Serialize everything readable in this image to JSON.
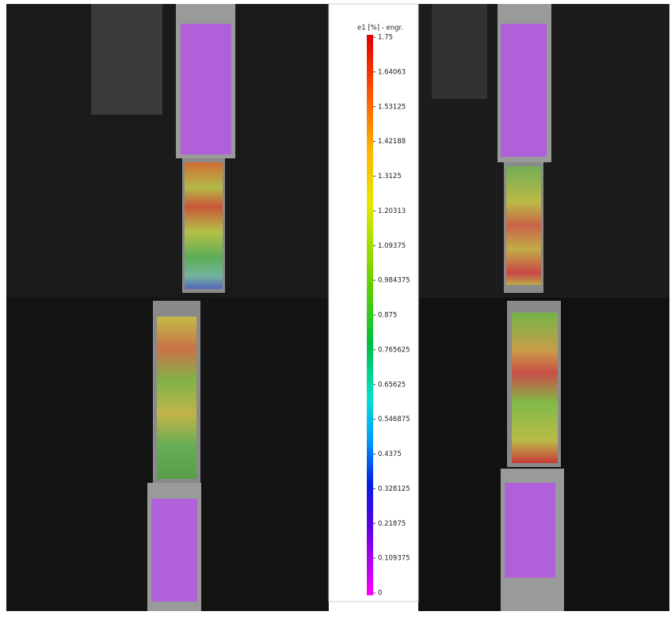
{
  "colorbar": {
    "title": "e1 [%] - engr.",
    "ticks": [
      "1.75",
      "1.64063",
      "1.53125",
      "1.42188",
      "1.3125",
      "1.20313",
      "1.09375",
      "0.984375",
      "0.875",
      "0.765625",
      "0.65625",
      "0.546875",
      "0.4375",
      "0.328125",
      "0.21875",
      "0.109375",
      "0"
    ]
  }
}
